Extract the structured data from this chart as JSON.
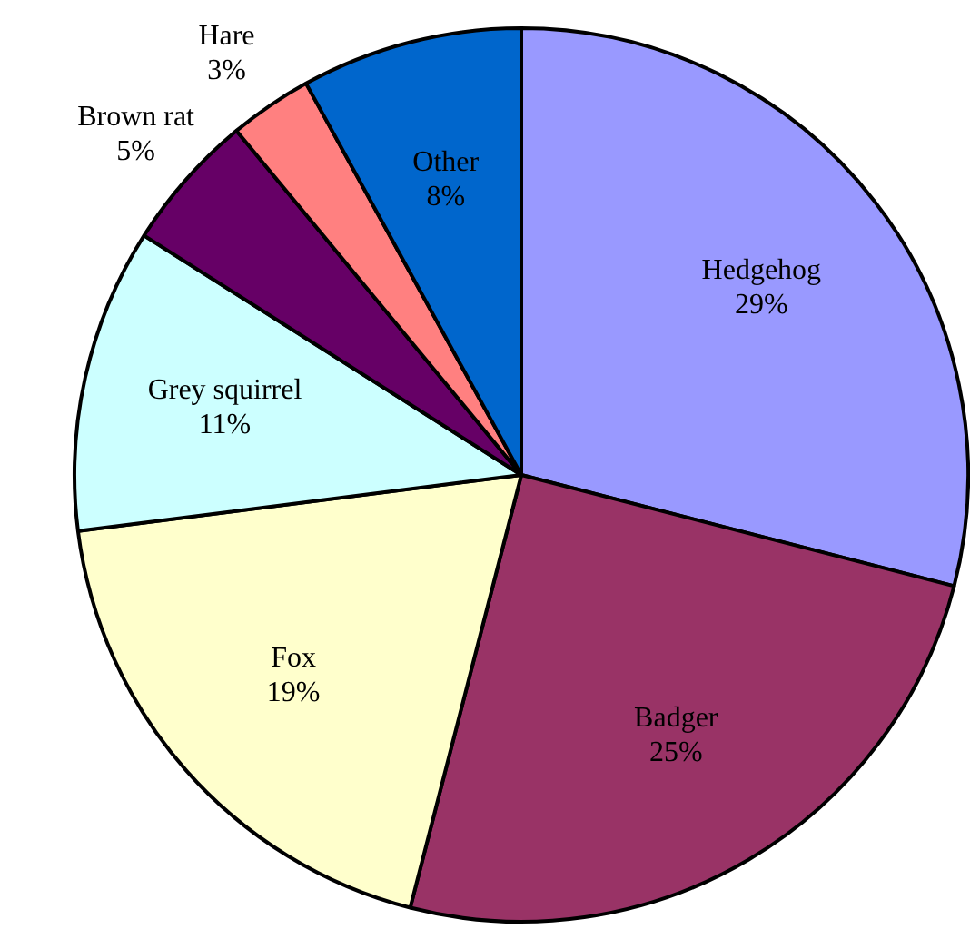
{
  "chart_data": {
    "type": "pie",
    "categories": [
      "Hedgehog",
      "Badger",
      "Fox",
      "Grey squirrel",
      "Brown rat",
      "Hare",
      "Other"
    ],
    "values": [
      29,
      25,
      19,
      11,
      5,
      3,
      8
    ],
    "value_labels": [
      "29%",
      "25%",
      "19%",
      "11%",
      "5%",
      "3%",
      "8%"
    ],
    "colors": [
      "#9999ff",
      "#993366",
      "#ffffcc",
      "#ccffff",
      "#660066",
      "#ff8080",
      "#0066cc"
    ],
    "legend": false
  }
}
